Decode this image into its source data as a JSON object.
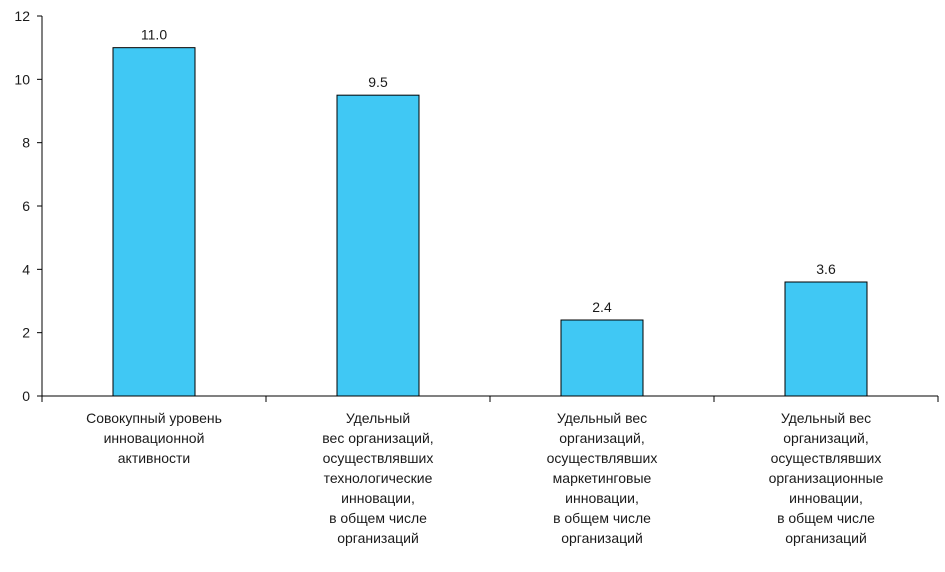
{
  "chart_data": {
    "type": "bar",
    "categories": [
      [
        "Совокупный уровень",
        "инновационной",
        "активности"
      ],
      [
        "Удельный",
        "вес организаций,",
        "осуществлявших",
        "технологические",
        "инновации,",
        "в общем числе",
        "организаций"
      ],
      [
        "Удельный вес",
        "организаций,",
        "осуществлявших",
        "маркетинговые",
        "инновации,",
        "в общем числе",
        "организаций"
      ],
      [
        "Удельный вес",
        "организаций,",
        "осуществлявших",
        "организационные",
        "инновации,",
        "в общем числе",
        "организаций"
      ]
    ],
    "values": [
      11.0,
      9.5,
      2.4,
      3.6
    ],
    "data_labels": [
      "11.0",
      "9.5",
      "2.4",
      "3.6"
    ],
    "y_ticks": [
      0,
      2,
      4,
      6,
      8,
      10,
      12
    ],
    "ylim": [
      0,
      12
    ],
    "grid": false,
    "legend": "none",
    "bar_color": "#40c8f4",
    "title": "",
    "xlabel": "",
    "ylabel": ""
  }
}
